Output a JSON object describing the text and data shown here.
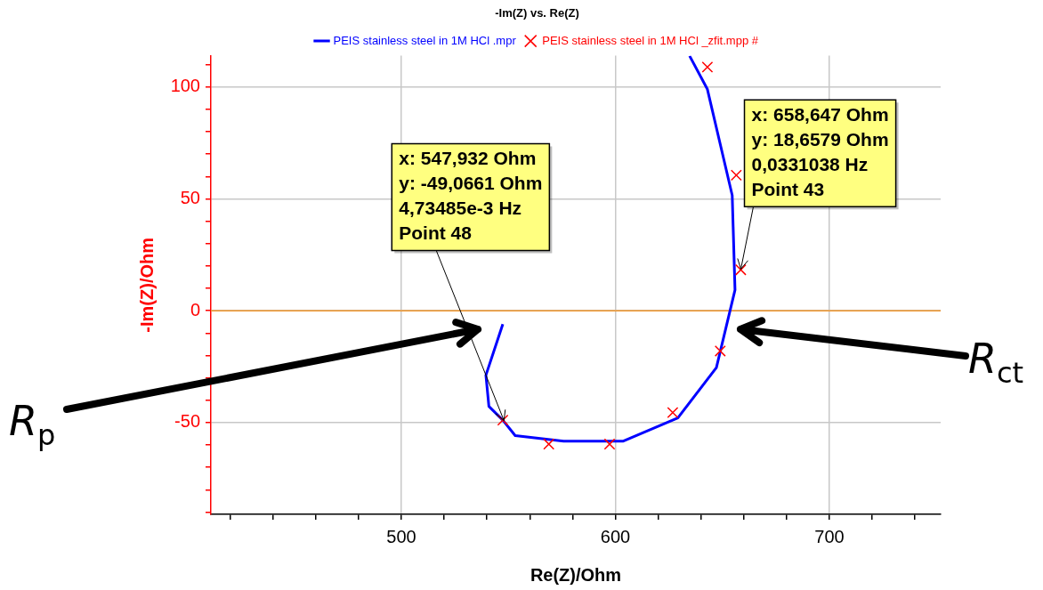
{
  "chart_data": {
    "type": "line",
    "title": "-Im(Z) vs. Re(Z)",
    "xlabel": "Re(Z)/Ohm",
    "ylabel": "-Im(Z)/Ohm",
    "xlim": [
      411,
      752
    ],
    "xticks": [
      {
        "value": 420,
        "label": null
      },
      {
        "value": 440,
        "label": null
      },
      {
        "value": 460,
        "label": null
      },
      {
        "value": 480,
        "label": null
      },
      500,
      {
        "value": 520,
        "label": null
      },
      {
        "value": 540,
        "label": null
      },
      {
        "value": 560,
        "label": null
      },
      {
        "value": 580,
        "label": null
      },
      600,
      {
        "value": 620,
        "label": null
      },
      {
        "value": 640,
        "label": null
      },
      {
        "value": 660,
        "label": null
      },
      {
        "value": 680,
        "label": null
      },
      700,
      {
        "value": 720,
        "label": null
      },
      {
        "value": 740,
        "label": null
      }
    ],
    "ylim": [
      -91,
      114
    ],
    "yticks": [
      {
        "value": -90,
        "label": null
      },
      {
        "value": -80,
        "label": null
      },
      {
        "value": -70,
        "label": null
      },
      {
        "value": -60,
        "label": null
      },
      -50,
      {
        "value": -40,
        "label": null
      },
      {
        "value": -30,
        "label": null
      },
      {
        "value": -20,
        "label": null
      },
      {
        "value": -10,
        "label": null
      },
      0,
      {
        "value": 10,
        "label": null
      },
      {
        "value": 20,
        "label": null
      },
      {
        "value": 30,
        "label": null
      },
      {
        "value": 40,
        "label": null
      },
      50,
      {
        "value": 60,
        "label": null
      },
      {
        "value": 70,
        "label": null
      },
      {
        "value": 80,
        "label": null
      },
      {
        "value": 90,
        "label": null
      },
      100,
      {
        "value": 110,
        "label": null
      }
    ],
    "grid": true,
    "legend": "top",
    "series": [
      {
        "name": "PEIS stainless steel in 1M HCl .mpr",
        "color": "#0000ff",
        "marker": "none",
        "line_style": "solid",
        "x": [
          634.7,
          643.0,
          654.6,
          655.9,
          647.2,
          629.2,
          603.5,
          575.8,
          553.2,
          547.4,
          540.9,
          539.5,
          547.4
        ],
        "values": [
          113.9,
          99.0,
          51.6,
          9.3,
          -25.4,
          -47.9,
          -58.3,
          -58.3,
          -55.8,
          -48.9,
          -42.7,
          -28.8,
          -6.0
        ]
      },
      {
        "name": "PEIS stainless steel in 1M HCl _zfit.mpp #",
        "type": "scatter",
        "color": "#ff0000",
        "marker": "cross",
        "x": [
          643.0,
          656.5,
          658.6,
          649.0,
          626.8,
          597.3,
          568.9,
          547.4
        ],
        "values": [
          108.9,
          60.6,
          18.3,
          -18.0,
          -45.5,
          -59.6,
          -59.6,
          -48.9
        ]
      }
    ],
    "ref_lines": [
      {
        "axis": "y",
        "value": 0,
        "color": "#f0962d",
        "line_style": "solid"
      }
    ],
    "annotations": [
      {
        "text": "x: 547,932 Ohm\ny: -49,0661 Ohm\n4,73485e-3 Hz\nPoint 48",
        "x": 547.932,
        "y": -49.0661
      },
      {
        "text": "x: 658,647 Ohm\ny: 18,6579 Ohm\n0,0331038 Hz\nPoint 43",
        "x": 658.647,
        "y": 18.6579
      },
      "R$_{p}$",
      "R$_{ct}$"
    ]
  }
}
